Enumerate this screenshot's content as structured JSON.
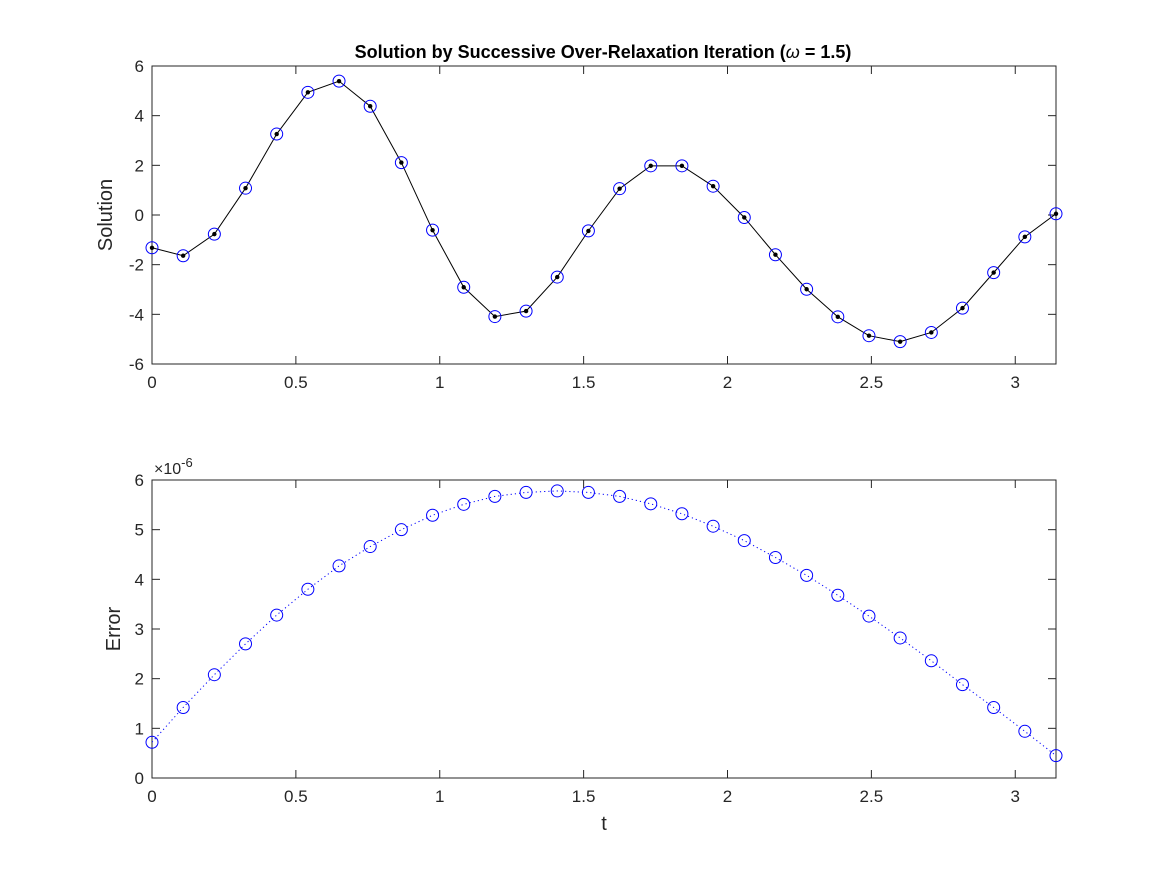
{
  "title_parts": {
    "prefix": "Solution by Successive Over-Relaxation Iteration (",
    "omega": "ω",
    "suffix": " = 1.5)"
  },
  "colors": {
    "marker": "#0000ff",
    "line": "#000000",
    "axes": "#262626",
    "background": "#ffffff"
  },
  "chart_data": [
    {
      "type": "line",
      "title": "Solution by Successive Over-Relaxation Iteration (ω = 1.5)",
      "xlabel": "",
      "ylabel": "Solution",
      "xlim": [
        0,
        3.1416
      ],
      "ylim": [
        -6,
        6
      ],
      "xticks": [
        0,
        0.5,
        1,
        1.5,
        2,
        2.5,
        3
      ],
      "xtick_labels": [
        "0",
        "0.5",
        "1",
        "1.5",
        "2",
        "2.5",
        "3"
      ],
      "yticks": [
        -6,
        -4,
        -2,
        0,
        2,
        4,
        6
      ],
      "ytick_labels": [
        "-6",
        "-4",
        "-2",
        "0",
        "2",
        "4",
        "6"
      ],
      "grid": false,
      "x": [
        0,
        0.1083,
        0.2167,
        0.325,
        0.4333,
        0.5417,
        0.65,
        0.7583,
        0.8666,
        0.975,
        1.0833,
        1.1916,
        1.3,
        1.4083,
        1.5166,
        1.625,
        1.7333,
        1.8416,
        1.95,
        2.0583,
        2.1666,
        2.275,
        2.3833,
        2.4916,
        2.6,
        2.7083,
        2.8166,
        2.925,
        3.0333,
        3.1416
      ],
      "series": [
        {
          "style": "solid black line with black dot markers",
          "values": [
            -1.32,
            -1.64,
            -0.77,
            1.08,
            3.26,
            4.94,
            5.39,
            4.38,
            2.11,
            -0.61,
            -2.91,
            -4.09,
            -3.87,
            -2.5,
            -0.64,
            1.06,
            1.98,
            1.98,
            1.16,
            -0.1,
            -1.6,
            -2.99,
            -4.1,
            -4.86,
            -5.1,
            -4.73,
            -3.75,
            -2.32,
            -0.88,
            0.05
          ]
        },
        {
          "style": "blue open circle markers",
          "values": [
            -1.32,
            -1.64,
            -0.77,
            1.08,
            3.26,
            4.94,
            5.39,
            4.38,
            2.11,
            -0.61,
            -2.91,
            -4.09,
            -3.87,
            -2.5,
            -0.64,
            1.06,
            1.98,
            1.98,
            1.16,
            -0.1,
            -1.6,
            -2.99,
            -4.1,
            -4.86,
            -5.1,
            -4.73,
            -3.75,
            -2.32,
            -0.88,
            0.05
          ]
        }
      ]
    },
    {
      "type": "line",
      "title": "",
      "xlabel": "t",
      "ylabel": "Error",
      "y_exponent_label": "×10",
      "y_exponent": "-6",
      "xlim": [
        0,
        3.1416
      ],
      "ylim": [
        0,
        6
      ],
      "xticks": [
        0,
        0.5,
        1,
        1.5,
        2,
        2.5,
        3
      ],
      "xtick_labels": [
        "0",
        "0.5",
        "1",
        "1.5",
        "2",
        "2.5",
        "3"
      ],
      "yticks": [
        0,
        1,
        2,
        3,
        4,
        5,
        6
      ],
      "ytick_labels": [
        "0",
        "1",
        "2",
        "3",
        "4",
        "5",
        "6"
      ],
      "grid": false,
      "x": [
        0,
        0.1083,
        0.2167,
        0.325,
        0.4333,
        0.5417,
        0.65,
        0.7583,
        0.8666,
        0.975,
        1.0833,
        1.1916,
        1.3,
        1.4083,
        1.5166,
        1.625,
        1.7333,
        1.8416,
        1.95,
        2.0583,
        2.1666,
        2.275,
        2.3833,
        2.4916,
        2.6,
        2.7083,
        2.8166,
        2.925,
        3.0333,
        3.1416
      ],
      "series": [
        {
          "style": "blue dotted line with open circle markers",
          "values": [
            0.72,
            1.42,
            2.08,
            2.7,
            3.28,
            3.8,
            4.27,
            4.66,
            5.0,
            5.29,
            5.51,
            5.67,
            5.75,
            5.78,
            5.75,
            5.67,
            5.52,
            5.32,
            5.07,
            4.78,
            4.44,
            4.08,
            3.68,
            3.26,
            2.82,
            2.36,
            1.88,
            1.42,
            0.94,
            0.45
          ]
        }
      ]
    }
  ]
}
